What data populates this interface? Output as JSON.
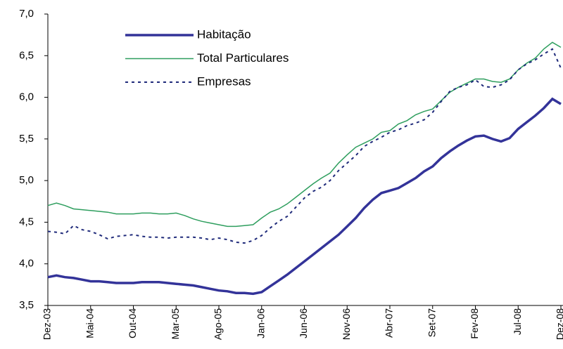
{
  "chart_data": {
    "type": "line",
    "categories": [
      "Dez-03",
      null,
      null,
      null,
      null,
      "Mai-04",
      null,
      null,
      null,
      null,
      "Out-04",
      null,
      null,
      null,
      null,
      "Mar-05",
      null,
      null,
      null,
      null,
      "Ago-05",
      null,
      null,
      null,
      null,
      "Jan-06",
      null,
      null,
      null,
      null,
      "Jun-06",
      null,
      null,
      null,
      null,
      "Nov-06",
      null,
      null,
      null,
      null,
      "Abr-07",
      null,
      null,
      null,
      null,
      "Set-07",
      null,
      null,
      null,
      null,
      "Fev-08",
      null,
      null,
      null,
      null,
      "Jul-08",
      null,
      null,
      null,
      null,
      "Dez-08"
    ],
    "series": [
      {
        "name": "Habitação",
        "color": "#333399",
        "values": [
          3.84,
          3.86,
          3.84,
          3.83,
          3.81,
          3.79,
          3.79,
          3.78,
          3.77,
          3.77,
          3.77,
          3.78,
          3.78,
          3.78,
          3.77,
          3.76,
          3.75,
          3.74,
          3.72,
          3.7,
          3.68,
          3.67,
          3.65,
          3.65,
          3.64,
          3.66,
          3.73,
          3.8,
          3.87,
          3.95,
          4.03,
          4.11,
          4.19,
          4.27,
          4.35,
          4.45,
          4.55,
          4.67,
          4.77,
          4.85,
          4.88,
          4.91,
          4.97,
          5.03,
          5.11,
          5.17,
          5.27,
          5.35,
          5.42,
          5.48,
          5.53,
          5.54,
          5.5,
          5.47,
          5.51,
          5.62,
          5.7,
          5.78,
          5.87,
          5.98,
          5.92
        ]
      },
      {
        "name": "Total Particulares",
        "color": "#2e9e5e",
        "values": [
          4.7,
          4.73,
          4.7,
          4.66,
          4.65,
          4.64,
          4.63,
          4.62,
          4.6,
          4.6,
          4.6,
          4.61,
          4.61,
          4.6,
          4.6,
          4.61,
          4.58,
          4.54,
          4.51,
          4.49,
          4.47,
          4.45,
          4.45,
          4.46,
          4.47,
          4.55,
          4.62,
          4.66,
          4.72,
          4.8,
          4.88,
          4.96,
          5.03,
          5.09,
          5.21,
          5.31,
          5.4,
          5.45,
          5.5,
          5.58,
          5.6,
          5.68,
          5.72,
          5.79,
          5.83,
          5.86,
          5.96,
          6.06,
          6.12,
          6.17,
          6.22,
          6.22,
          6.19,
          6.18,
          6.22,
          6.33,
          6.41,
          6.47,
          6.58,
          6.66,
          6.6
        ]
      },
      {
        "name": "Empresas",
        "color": "#1f2a7a",
        "dashed": true,
        "values": [
          4.39,
          4.38,
          4.36,
          4.46,
          4.41,
          4.39,
          4.35,
          4.3,
          4.33,
          4.34,
          4.35,
          4.33,
          4.32,
          4.32,
          4.31,
          4.32,
          4.32,
          4.32,
          4.31,
          4.29,
          4.31,
          4.29,
          4.26,
          4.25,
          4.28,
          4.34,
          4.43,
          4.51,
          4.57,
          4.68,
          4.79,
          4.87,
          4.92,
          5.0,
          5.12,
          5.21,
          5.3,
          5.41,
          5.47,
          5.52,
          5.58,
          5.61,
          5.66,
          5.69,
          5.73,
          5.82,
          5.95,
          6.07,
          6.12,
          6.15,
          6.21,
          6.13,
          6.12,
          6.15,
          6.21,
          6.33,
          6.4,
          6.45,
          6.52,
          6.58,
          6.35
        ]
      }
    ],
    "ylim": [
      3.5,
      7.0
    ],
    "yticks": [
      {
        "value": 3.5,
        "label": "3,5"
      },
      {
        "value": 4.0,
        "label": "4,0"
      },
      {
        "value": 4.5,
        "label": "4,5"
      },
      {
        "value": 5.0,
        "label": "5,0"
      },
      {
        "value": 5.5,
        "label": "5,5"
      },
      {
        "value": 6.0,
        "label": "6,0"
      },
      {
        "value": 6.5,
        "label": "6,5"
      },
      {
        "value": 7.0,
        "label": "7,0"
      }
    ],
    "grid": false,
    "legend": "upper left"
  }
}
